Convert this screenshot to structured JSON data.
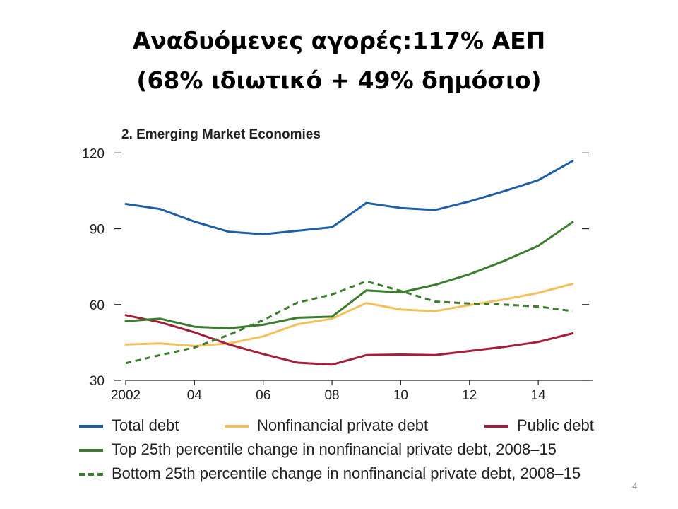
{
  "slide": {
    "title_line1": "Αναδυόμενες αγορές:117% ΑΕΠ",
    "title_line2": "(68% ιδιωτικό + 49% δημόσιο)",
    "page_number": "4"
  },
  "chart_data": {
    "type": "line",
    "title": "2. Emerging Market Economies",
    "xlabel": "",
    "ylabel": "",
    "x": [
      2002,
      2003,
      2004,
      2005,
      2006,
      2007,
      2008,
      2009,
      2010,
      2011,
      2012,
      2013,
      2014,
      2015
    ],
    "x_tick_values": [
      2002,
      2004,
      2006,
      2008,
      2010,
      2012,
      2014
    ],
    "x_tick_labels": [
      "2002",
      "04",
      "06",
      "08",
      "10",
      "12",
      "14"
    ],
    "xlim": [
      2002,
      2015.6
    ],
    "ylim": [
      30,
      124
    ],
    "y_ticks": [
      30,
      60,
      90,
      120
    ],
    "y_tick_labels": [
      "30",
      "60",
      "90",
      "120"
    ],
    "grid": false,
    "legend_position": "bottom",
    "series": [
      {
        "name": "Total debt",
        "color": "#1f5fa8",
        "dash": false,
        "values": [
          99.8,
          97.8,
          92.8,
          88.8,
          87.8,
          89.2,
          90.6,
          100.2,
          98.2,
          97.4,
          100.8,
          104.8,
          109.2,
          116.8
        ]
      },
      {
        "name": "Nonfinancial private debt",
        "color": "#f3c15c",
        "dash": false,
        "values": [
          44.2,
          44.6,
          43.6,
          44.6,
          47.4,
          52.2,
          54.4,
          60.6,
          58.0,
          57.4,
          59.8,
          62.0,
          64.6,
          68.2
        ]
      },
      {
        "name": "Public debt",
        "color": "#a81e3a",
        "dash": false,
        "values": [
          55.8,
          53.0,
          49.0,
          44.2,
          40.4,
          37.0,
          36.2,
          40.0,
          40.2,
          40.0,
          41.6,
          43.2,
          45.2,
          48.6
        ]
      },
      {
        "name": "Top 25th percentile change in nonfinancial private debt, 2008–15",
        "color": "#3a7d2c",
        "dash": false,
        "values": [
          53.4,
          54.4,
          51.2,
          50.6,
          52.0,
          54.8,
          55.2,
          65.6,
          64.8,
          67.8,
          72.0,
          77.2,
          83.2,
          92.6
        ]
      },
      {
        "name": "Bottom 25th percentile change in nonfinancial private debt, 2008–15",
        "color": "#3a7d2c",
        "dash": true,
        "values": [
          36.8,
          40.0,
          43.0,
          48.0,
          53.8,
          60.8,
          64.0,
          69.2,
          65.4,
          61.2,
          60.4,
          60.0,
          59.2,
          57.4
        ]
      }
    ]
  }
}
